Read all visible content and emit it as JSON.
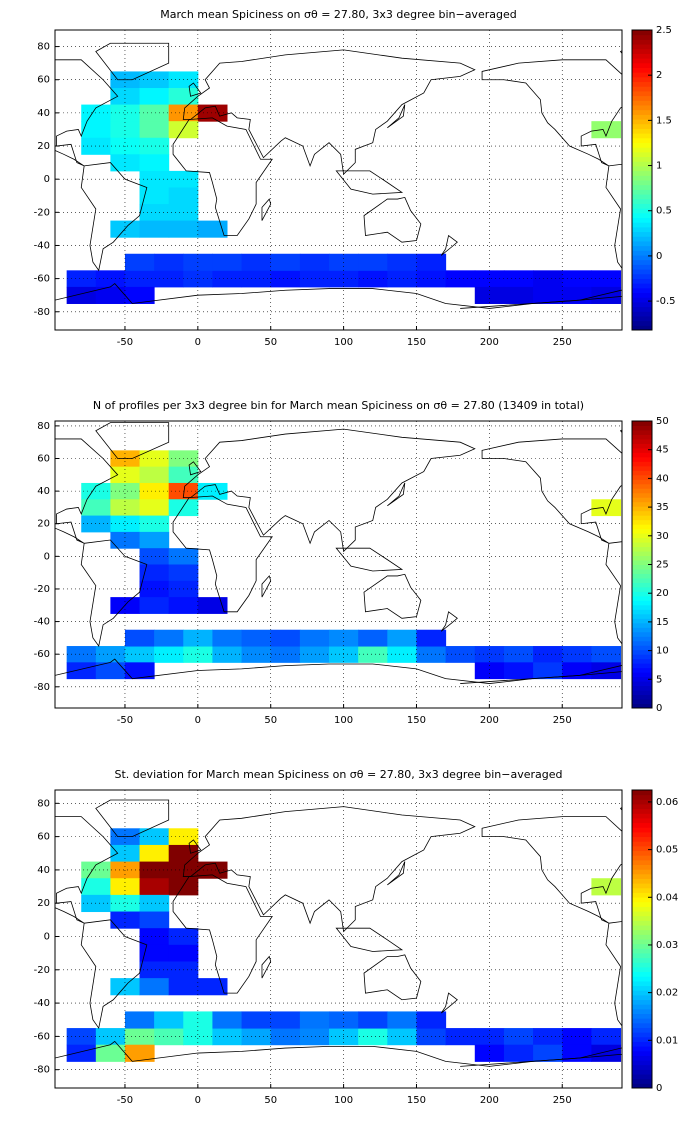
{
  "chart_data": [
    {
      "type": "heatmap",
      "title": "March mean Spiciness on σθ = 27.80, 3x3 degree bin−averaged",
      "xlim": [
        -98,
        291
      ],
      "ylim": [
        -91,
        90
      ],
      "xticks": [
        -50,
        0,
        50,
        100,
        150,
        200,
        250
      ],
      "yticks": [
        -80,
        -60,
        -40,
        -20,
        0,
        20,
        40,
        60,
        80
      ],
      "grid": true,
      "clim": [
        -0.82,
        2.5
      ],
      "cticks": [
        -0.5,
        0,
        0.5,
        1,
        1.5,
        2,
        2.5
      ],
      "colormap": "jet",
      "lon": [
        -80,
        -60,
        -40,
        -20,
        0,
        20,
        40,
        60,
        80,
        100,
        120,
        140,
        160,
        180,
        200,
        220,
        240,
        260,
        280,
        -80,
        -60,
        -40,
        200,
        220,
        240,
        260,
        280,
        -40,
        -20,
        0,
        20,
        40,
        60,
        80,
        100,
        120,
        140,
        160,
        -50,
        -30,
        -10,
        -50,
        -30,
        -10,
        -70,
        -50,
        -30,
        -10,
        10,
        -70,
        -50,
        -30,
        -10,
        -70,
        -50,
        -30,
        -50,
        -30,
        -30,
        -10,
        -30,
        -10,
        -30,
        -10,
        -50,
        -30,
        -10,
        10,
        280
      ],
      "lat": [
        -60,
        -60,
        -60,
        -60,
        -60,
        -60,
        -60,
        -60,
        -60,
        -60,
        -60,
        -60,
        -60,
        -60,
        -60,
        -60,
        -60,
        -60,
        -60,
        -70,
        -70,
        -70,
        -70,
        -70,
        -70,
        -70,
        -70,
        -50,
        -50,
        -50,
        -50,
        -50,
        -50,
        -50,
        -50,
        -50,
        -50,
        -50,
        60,
        60,
        60,
        50,
        50,
        50,
        40,
        40,
        40,
        40,
        40,
        30,
        30,
        30,
        30,
        20,
        20,
        20,
        10,
        10,
        0,
        0,
        -10,
        -10,
        -20,
        -20,
        -30,
        -30,
        -30,
        -30,
        30
      ],
      "values": [
        -0.3,
        -0.35,
        -0.3,
        -0.3,
        -0.25,
        -0.3,
        -0.3,
        -0.35,
        -0.3,
        -0.3,
        -0.35,
        -0.3,
        -0.35,
        -0.4,
        -0.4,
        -0.4,
        -0.45,
        -0.4,
        -0.4,
        -0.5,
        -0.45,
        -0.4,
        -0.5,
        -0.5,
        -0.45,
        -0.45,
        -0.5,
        -0.2,
        -0.25,
        -0.2,
        -0.2,
        -0.25,
        -0.2,
        -0.25,
        -0.2,
        -0.2,
        -0.25,
        -0.3,
        0.2,
        0.25,
        0.35,
        0.3,
        0.4,
        0.55,
        0.4,
        0.5,
        0.7,
        1.6,
        2.4,
        0.4,
        0.5,
        0.7,
        1.1,
        0.35,
        0.45,
        0.5,
        0.35,
        0.4,
        0.35,
        0.35,
        0.35,
        0.3,
        0.3,
        0.3,
        0.25,
        0.2,
        0.2,
        0.15,
        0.9
      ]
    },
    {
      "type": "heatmap",
      "title": "N of profiles per 3x3 degree bin for March mean Spiciness on σθ = 27.80 (13409 in total)",
      "xlim": [
        -98,
        291
      ],
      "ylim": [
        -93,
        83
      ],
      "xticks": [
        -50,
        0,
        50,
        100,
        150,
        200,
        250
      ],
      "yticks": [
        -80,
        -60,
        -40,
        -20,
        0,
        20,
        40,
        60,
        80
      ],
      "grid": true,
      "clim": [
        0,
        50
      ],
      "cticks": [
        0,
        5,
        10,
        15,
        20,
        25,
        30,
        35,
        40,
        45,
        50
      ],
      "colormap": "jet",
      "lon": [
        -80,
        -60,
        -40,
        -20,
        0,
        20,
        40,
        60,
        80,
        100,
        120,
        140,
        160,
        180,
        200,
        220,
        240,
        260,
        280,
        -80,
        -60,
        -40,
        200,
        220,
        240,
        260,
        280,
        -40,
        -20,
        0,
        20,
        40,
        60,
        80,
        100,
        120,
        140,
        160,
        -50,
        -30,
        -10,
        -50,
        -30,
        -10,
        -70,
        -50,
        -30,
        -10,
        10,
        -70,
        -50,
        -30,
        -10,
        -70,
        -50,
        -30,
        -50,
        -30,
        -30,
        -10,
        -30,
        -10,
        -30,
        -10,
        -50,
        -30,
        -10,
        10,
        280
      ],
      "lat": [
        -60,
        -60,
        -60,
        -60,
        -60,
        -60,
        -60,
        -60,
        -60,
        -60,
        -60,
        -60,
        -60,
        -60,
        -60,
        -60,
        -60,
        -60,
        -60,
        -70,
        -70,
        -70,
        -70,
        -70,
        -70,
        -70,
        -70,
        -50,
        -50,
        -50,
        -50,
        -50,
        -50,
        -50,
        -50,
        -50,
        -50,
        -50,
        60,
        60,
        60,
        50,
        50,
        50,
        40,
        40,
        40,
        40,
        40,
        30,
        30,
        30,
        30,
        20,
        20,
        20,
        10,
        10,
        0,
        0,
        -10,
        -10,
        -20,
        -20,
        -30,
        -30,
        -30,
        -30,
        30
      ],
      "values": [
        12,
        14,
        16,
        18,
        20,
        15,
        13,
        12,
        14,
        16,
        22,
        18,
        12,
        10,
        9,
        10,
        8,
        9,
        10,
        8,
        10,
        7,
        6,
        7,
        9,
        6,
        5,
        10,
        12,
        15,
        12,
        11,
        10,
        12,
        13,
        11,
        14,
        8,
        35,
        30,
        25,
        30,
        28,
        22,
        20,
        25,
        32,
        40,
        18,
        22,
        28,
        30,
        20,
        15,
        18,
        20,
        12,
        14,
        10,
        12,
        8,
        9,
        7,
        8,
        6,
        8,
        7,
        5,
        30
      ]
    },
    {
      "type": "heatmap",
      "title": "St. deviation for March mean Spiciness on σθ = 27.80, 3x3 degree bin−averaged",
      "xlim": [
        -98,
        291
      ],
      "ylim": [
        -91,
        88
      ],
      "xticks": [
        -50,
        0,
        50,
        100,
        150,
        200,
        250
      ],
      "yticks": [
        -80,
        -60,
        -40,
        -20,
        0,
        20,
        40,
        60,
        80
      ],
      "grid": true,
      "clim": [
        0,
        0.0625
      ],
      "cticks": [
        0,
        0.01,
        0.02,
        0.03,
        0.04,
        0.05,
        0.06
      ],
      "colormap": "jet",
      "lon": [
        -80,
        -60,
        -40,
        -20,
        0,
        20,
        40,
        60,
        80,
        100,
        120,
        140,
        160,
        180,
        200,
        220,
        240,
        260,
        280,
        -80,
        -60,
        -40,
        200,
        220,
        240,
        260,
        280,
        -40,
        -20,
        0,
        20,
        40,
        60,
        80,
        100,
        120,
        140,
        160,
        -50,
        -30,
        -10,
        -50,
        -30,
        -10,
        -70,
        -50,
        -30,
        -10,
        10,
        -70,
        -50,
        -30,
        -10,
        -70,
        -50,
        -30,
        -50,
        -30,
        -30,
        -10,
        -30,
        -10,
        -30,
        -10,
        -50,
        -30,
        -10,
        10,
        280
      ],
      "lat": [
        -60,
        -60,
        -60,
        -60,
        -60,
        -60,
        -60,
        -60,
        -60,
        -60,
        -60,
        -60,
        -60,
        -60,
        -60,
        -60,
        -60,
        -60,
        -60,
        -70,
        -70,
        -70,
        -70,
        -70,
        -70,
        -70,
        -70,
        -50,
        -50,
        -50,
        -50,
        -50,
        -50,
        -50,
        -50,
        -50,
        -50,
        -50,
        60,
        60,
        60,
        50,
        50,
        50,
        40,
        40,
        40,
        40,
        40,
        30,
        30,
        30,
        30,
        20,
        20,
        20,
        10,
        10,
        0,
        0,
        -10,
        -10,
        -20,
        -20,
        -30,
        -30,
        -30,
        -30,
        30
      ],
      "values": [
        0.012,
        0.02,
        0.03,
        0.028,
        0.025,
        0.02,
        0.018,
        0.015,
        0.016,
        0.02,
        0.025,
        0.02,
        0.012,
        0.01,
        0.01,
        0.012,
        0.01,
        0.008,
        0.01,
        0.01,
        0.03,
        0.045,
        0.008,
        0.01,
        0.012,
        0.008,
        0.006,
        0.015,
        0.02,
        0.025,
        0.015,
        0.012,
        0.012,
        0.015,
        0.014,
        0.012,
        0.015,
        0.01,
        0.015,
        0.02,
        0.04,
        0.02,
        0.04,
        0.065,
        0.03,
        0.045,
        0.065,
        0.065,
        0.065,
        0.025,
        0.04,
        0.06,
        0.065,
        0.02,
        0.025,
        0.02,
        0.01,
        0.012,
        0.008,
        0.01,
        0.008,
        0.008,
        0.01,
        0.01,
        0.02,
        0.015,
        0.01,
        0.01,
        0.035
      ]
    }
  ]
}
